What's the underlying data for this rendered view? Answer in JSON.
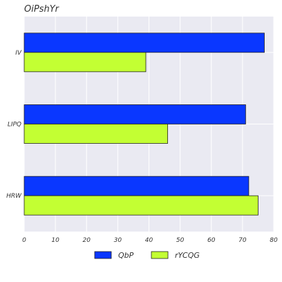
{
  "chart_data": {
    "type": "bar",
    "orientation": "horizontal",
    "title": "OiPshYr",
    "xlabel": "",
    "ylabel": "",
    "categories": [
      "IV",
      "LIPQ",
      "HRW"
    ],
    "series": [
      {
        "name": "QbP",
        "color": "#0a37ff",
        "values": [
          77,
          71,
          72
        ]
      },
      {
        "name": "rYCQG",
        "color": "#c3ff33",
        "values": [
          39,
          46,
          75
        ]
      }
    ],
    "xlim": [
      0,
      80
    ],
    "xticks": [
      0,
      10,
      20,
      30,
      40,
      50,
      60,
      70,
      80
    ],
    "grid": true,
    "background": "#eaeaf2",
    "legend": "bottom-center"
  }
}
